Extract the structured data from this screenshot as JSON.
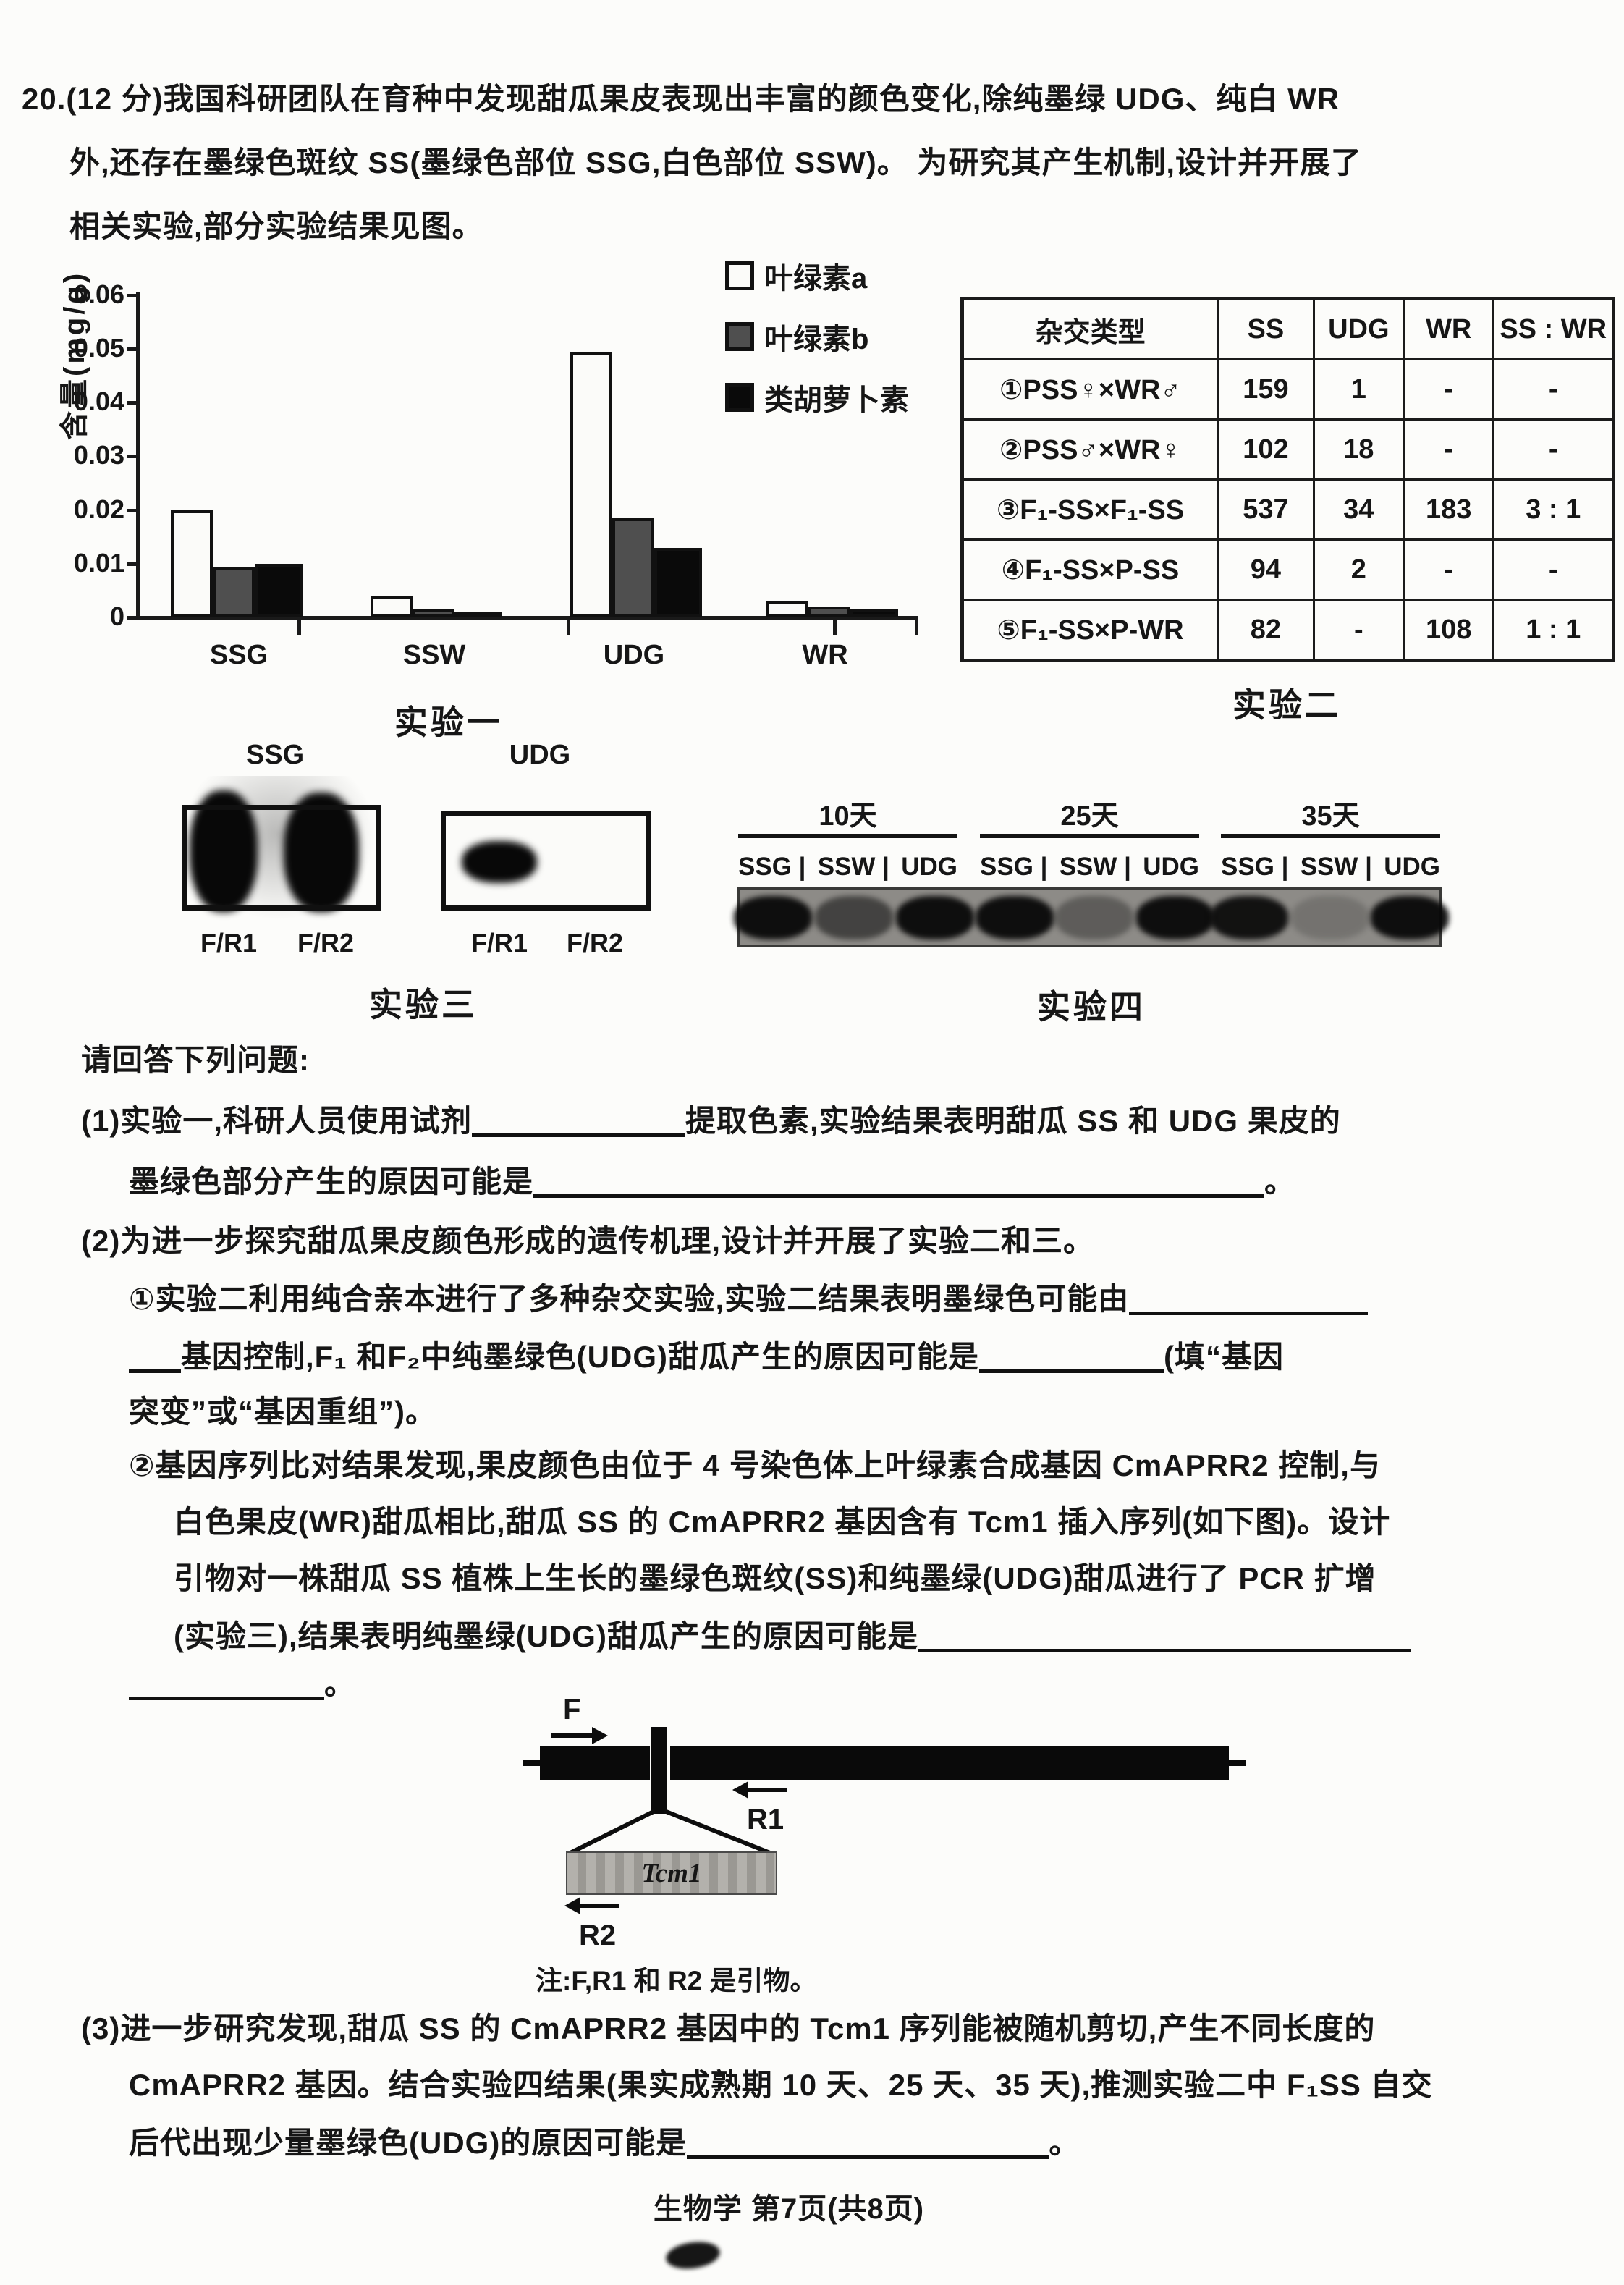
{
  "stem": {
    "line1": "20.(12 分)我国科研团队在育种中发现甜瓜果皮表现出丰富的颜色变化,除纯墨绿 UDG、纯白 WR",
    "line2": "外,还存在墨绿色斑纹 SS(墨绿色部位 SSG,白色部位 SSW)。 为研究其产生机制,设计并开展了",
    "line3": "相关实验,部分实验结果见图。"
  },
  "chart_data": {
    "type": "bar",
    "title": "实验一",
    "ylabel": "含量(mg/g)",
    "ylim": [
      0,
      0.06
    ],
    "yticks": [
      0,
      0.01,
      0.02,
      0.03,
      0.04,
      0.05,
      0.06
    ],
    "categories": [
      "SSG",
      "SSW",
      "UDG",
      "WR"
    ],
    "series": [
      {
        "name": "叶绿素a",
        "fill": "#fbfbf9",
        "values": [
          0.02,
          0.004,
          0.0495,
          0.003
        ]
      },
      {
        "name": "叶绿素b",
        "fill": "#4f4f4f",
        "values": [
          0.0095,
          0.0015,
          0.0185,
          0.002
        ]
      },
      {
        "name": "类胡萝卜素",
        "fill": "#0a0a0a",
        "values": [
          0.01,
          0.001,
          0.013,
          0.0015
        ]
      }
    ],
    "legend_position": "upper-right",
    "grid": false
  },
  "experiment2": {
    "caption": "实验二",
    "headers": [
      "杂交类型",
      "SS",
      "UDG",
      "WR",
      "SS : WR"
    ],
    "rows": [
      [
        "①PSS♀×WR♂",
        "159",
        "1",
        "-",
        "-"
      ],
      [
        "②PSS♂×WR♀",
        "102",
        "18",
        "-",
        "-"
      ],
      [
        "③F₁-SS×F₁-SS",
        "537",
        "34",
        "183",
        "3 : 1"
      ],
      [
        "④F₁-SS×P-SS",
        "94",
        "2",
        "-",
        "-"
      ],
      [
        "⑤F₁-SS×P-WR",
        "82",
        "-",
        "108",
        "1 : 1"
      ]
    ]
  },
  "experiment3": {
    "caption": "实验三",
    "left_gel_label": "SSG",
    "right_gel_label": "UDG",
    "left_lanes": [
      "F/R1",
      "F/R2"
    ],
    "right_lanes": [
      "F/R1",
      "F/R2"
    ]
  },
  "experiment4": {
    "caption": "实验四",
    "days": [
      "10天",
      "25天",
      "35天"
    ],
    "lanes": [
      "SSG",
      "SSW",
      "UDG"
    ],
    "band_opacity": [
      [
        0.95,
        0.55,
        0.95
      ],
      [
        0.95,
        0.35,
        0.95
      ],
      [
        0.92,
        0.18,
        0.95
      ]
    ]
  },
  "questions": {
    "intro": "请回答下列问题:",
    "q1_part1": "(1)实验一,科研人员使用试剂",
    "q1_part2": "提取色素,实验结果表明甜瓜 SS 和 UDG 果皮的",
    "q1_line2a": "墨绿色部分产生的原因可能是",
    "q1_line2b": "。",
    "q2_head": "(2)为进一步探究甜瓜果皮颜色形成的遗传机理,设计并开展了实验二和三。",
    "q2_1_line1": "①实验二利用纯合亲本进行了多种杂交实验,实验二结果表明墨绿色可能由",
    "q2_1_line2a": "基因控制,F₁ 和F₂中纯墨绿色(UDG)甜瓜产生的原因可能是",
    "q2_1_line2b": "(填“基因",
    "q2_1_line3": "突变”或“基因重组”)。",
    "q2_2_line1": "②基因序列比对结果发现,果皮颜色由位于 4 号染色体上叶绿素合成基因 CmAPRR2 控制,与",
    "q2_2_line2": "白色果皮(WR)甜瓜相比,甜瓜 SS 的 CmAPRR2 基因含有 Tcm1 插入序列(如下图)。设计",
    "q2_2_line3": "引物对一株甜瓜 SS 植株上生长的墨绿色斑纹(SS)和纯墨绿(UDG)甜瓜进行了 PCR 扩增",
    "q2_2_line4": "(实验三),结果表明纯墨绿(UDG)甜瓜产生的原因可能是",
    "q2_2_line5b": "。",
    "q3_line1": "(3)进一步研究发现,甜瓜 SS 的 CmAPRR2 基因中的 Tcm1 序列能被随机剪切,产生不同长度的",
    "q3_line2": "CmAPRR2 基因。结合实验四结果(果实成熟期 10 天、25 天、35 天),推测实验二中 F₁SS 自交",
    "q3_line3a": "后代出现少量墨绿色(UDG)的原因可能是",
    "q3_line3b": "。"
  },
  "diagram": {
    "f_label": "F",
    "r1_label": "R1",
    "r2_label": "R2",
    "insert_label": "Tcm1",
    "note": "注:F,R1 和 R2 是引物。"
  },
  "footer": "生物学  第7页(共8页)"
}
